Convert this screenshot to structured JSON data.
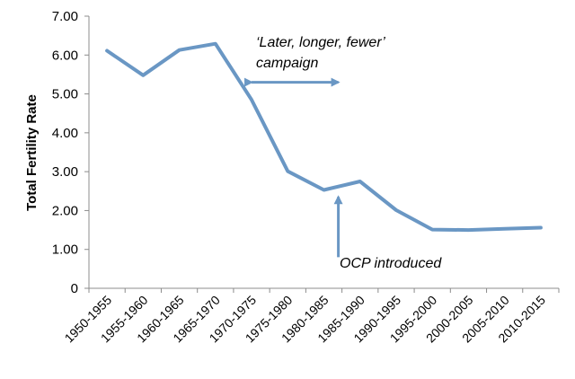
{
  "chart_data": {
    "type": "line",
    "categories": [
      "1950-1955",
      "1955-1960",
      "1960-1965",
      "1965-1970",
      "1970-1975",
      "1975-1980",
      "1980-1985",
      "1985-1990",
      "1990-1995",
      "1995-2000",
      "2000-2005",
      "2005-2010",
      "2010-2015"
    ],
    "series": [
      {
        "values": [
          6.11,
          5.48,
          6.13,
          6.29,
          4.85,
          3.01,
          2.53,
          2.75,
          2.01,
          1.51,
          1.5,
          1.53,
          1.56
        ]
      }
    ],
    "ylabel": "Total Fertility Rate",
    "ylim": [
      0,
      7
    ],
    "yticks": [
      "0",
      "1.00",
      "2.00",
      "3.00",
      "4.00",
      "5.00",
      "6.00",
      "7.00"
    ],
    "grid": false,
    "legend": "none",
    "line_color": "#6a97c4",
    "annotations": [
      {
        "line1": "‘Later, longer, fewer’",
        "line2": "campaign",
        "arrow": "double-horizontal",
        "from_category": 4,
        "to_category": 6.4,
        "y": 5.3
      },
      {
        "text": "OCP introduced",
        "arrow": "up",
        "category": 6.4,
        "y_from": 0.8,
        "y_to": 2.35
      }
    ]
  }
}
